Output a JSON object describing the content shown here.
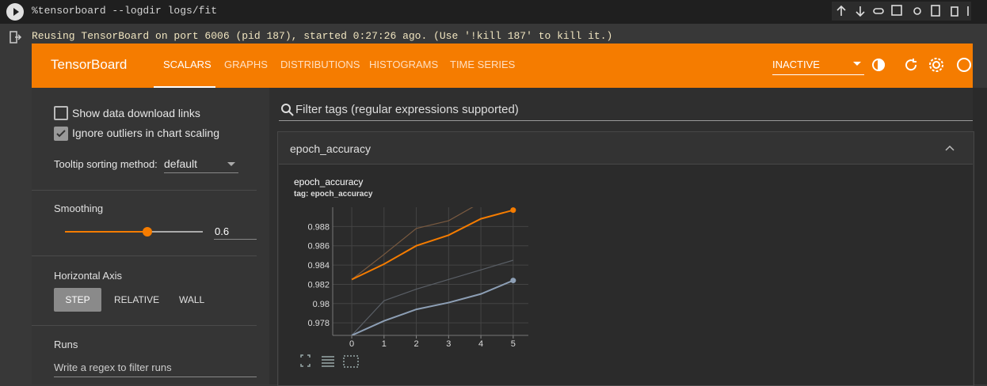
{
  "page": {
    "cell": {
      "code": "%tensorboard --logdir logs/fit",
      "output": "Reusing TensorBoard on port 6006 (pid 187), started 0:27:26 ago. (Use '!kill 187' to kill it.)"
    },
    "header": {
      "title": "TensorBoard",
      "tabs": [
        "SCALARS",
        "GRAPHS",
        "DISTRIBUTIONS",
        "HISTOGRAMS",
        "TIME SERIES"
      ],
      "run_status": "INACTIVE"
    },
    "sidebar": {
      "show_download": "Show data download links",
      "ignore_outliers": "Ignore outliers in chart scaling",
      "tooltip_label": "Tooltip sorting method:",
      "tooltip_value": "default",
      "smoothing_label": "Smoothing",
      "smoothing_value": 0.6,
      "horizontal_axis_label": "Horizontal Axis",
      "axis_options": [
        "STEP",
        "RELATIVE",
        "WALL"
      ],
      "runs_label": "Runs",
      "runs_placeholder": "Write a regex to filter runs"
    },
    "filter_placeholder": "Filter tags (regular expressions supported)",
    "group": "epoch_accuracy"
  },
  "chart_data": {
    "type": "line",
    "title": "epoch_accuracy",
    "subtitle": "tag: epoch_accuracy",
    "x": [
      0,
      1,
      2,
      3,
      4,
      5
    ],
    "series": [
      {
        "color": "#f57c00",
        "values": [
          0.9825,
          0.9841,
          0.986,
          0.9871,
          0.9888,
          0.9897
        ]
      },
      {
        "color": "#8d9fb5",
        "values": [
          0.9767,
          0.9782,
          0.9794,
          0.9801,
          0.981,
          0.9824
        ]
      },
      {
        "color": "#7a5a40",
        "values": [
          0.9825,
          0.9851,
          0.9878,
          0.9886,
          0.9905,
          0.991
        ]
      },
      {
        "color": "#5a5f66",
        "values": [
          0.9767,
          0.9803,
          0.9815,
          0.9825,
          0.9835,
          0.9845
        ]
      }
    ],
    "xlim": [
      -0.59,
      5.47
    ],
    "ylim": [
      0.9767,
      0.99
    ],
    "xticks": [
      0,
      1,
      2,
      3,
      4,
      5
    ],
    "yticks": [
      0.978,
      0.98,
      0.982,
      0.984,
      0.986,
      0.988
    ],
    "grid": true
  }
}
